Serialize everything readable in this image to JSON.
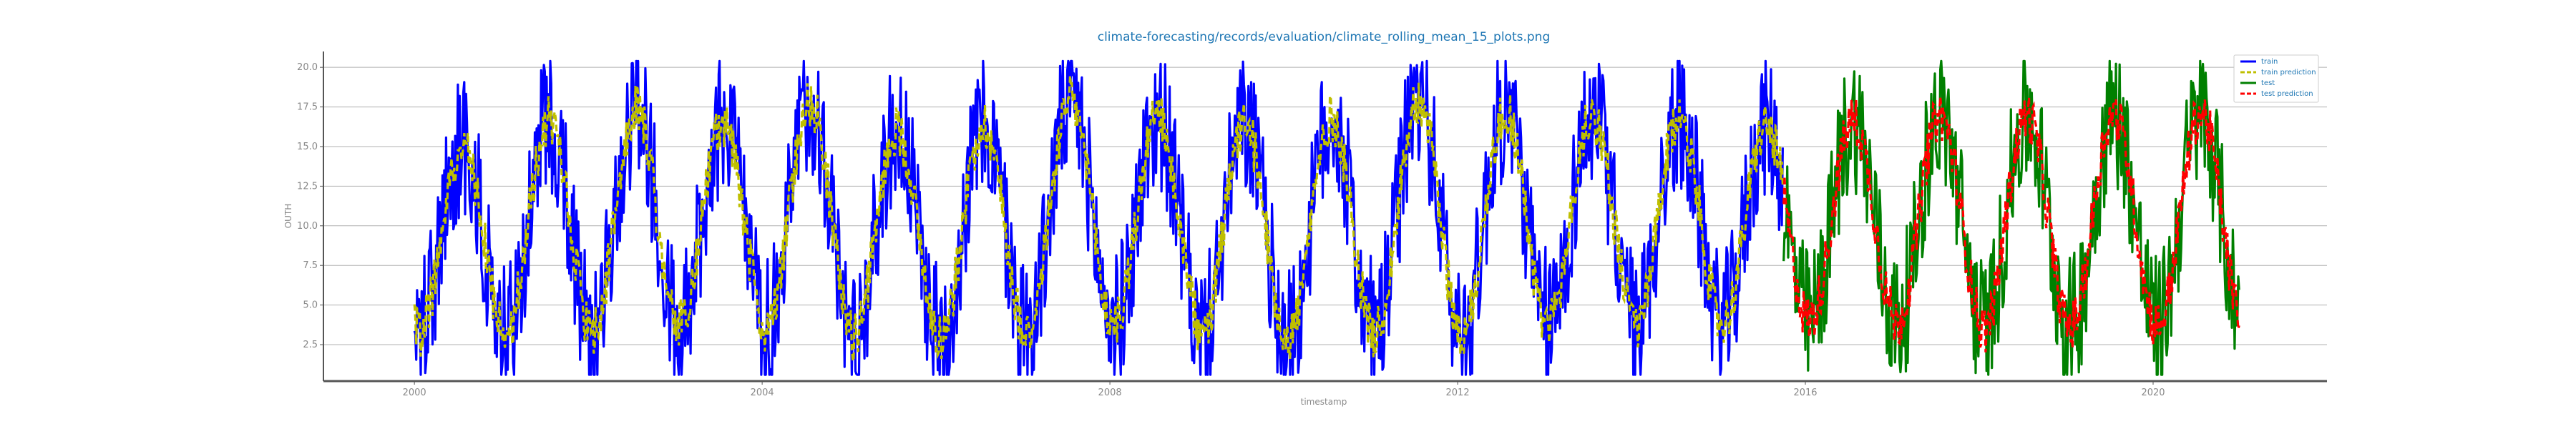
{
  "chart_data": {
    "type": "line",
    "title": "climate-forecasting/records/evaluation/climate_rolling_mean_15_plots.png",
    "xlabel": "timestamp",
    "ylabel": "OUTH",
    "x_ticks": [
      "2000",
      "2004",
      "2008",
      "2012",
      "2016",
      "2020"
    ],
    "y_ticks": [
      "2.5",
      "5.0",
      "7.5",
      "10.0",
      "12.5",
      "15.0",
      "17.5",
      "20.0"
    ],
    "xlim": [
      "1998-12-15",
      "2022-01-01"
    ],
    "ylim": [
      0.2,
      21.0
    ],
    "grid": "horizontal",
    "legend_position": "top-right",
    "train_range": [
      "2000-01-01",
      "2015-10-01"
    ],
    "test_range": [
      "2015-10-01",
      "2020-12-31"
    ],
    "series": [
      {
        "name": "train",
        "style": "solid",
        "color": "#0000ff"
      },
      {
        "name": "train prediction",
        "style": "dashed",
        "color": "#bfbf00"
      },
      {
        "name": "test",
        "style": "solid",
        "color": "#008000"
      },
      {
        "name": "test prediction",
        "style": "dashed",
        "color": "#ff0000"
      }
    ],
    "seasonal_summer_peaks": [
      16.5,
      18.3,
      19.2,
      18.1,
      19.6,
      17.6,
      18.0,
      19.7,
      18.4,
      18.0,
      18.4,
      19.8,
      19.0,
      18.5,
      18.4,
      17.8,
      18.2,
      18.6,
      18.6,
      18.7,
      18.8
    ],
    "seasonal_winter_troughs": [
      1.7,
      1.5,
      1.5,
      2.2,
      1.6,
      1.4,
      1.4,
      1.7,
      2.2,
      1.2,
      1.2,
      1.4,
      1.4,
      2.4,
      2.0,
      2.4,
      2.5,
      2.2,
      1.8,
      2.0,
      2.0
    ]
  },
  "colors": {
    "axis": "#555555",
    "grid": "#b0b0b0",
    "tick_text": "#888888",
    "title_text": "#1f77b4",
    "legend_text": "#1f77b4"
  }
}
